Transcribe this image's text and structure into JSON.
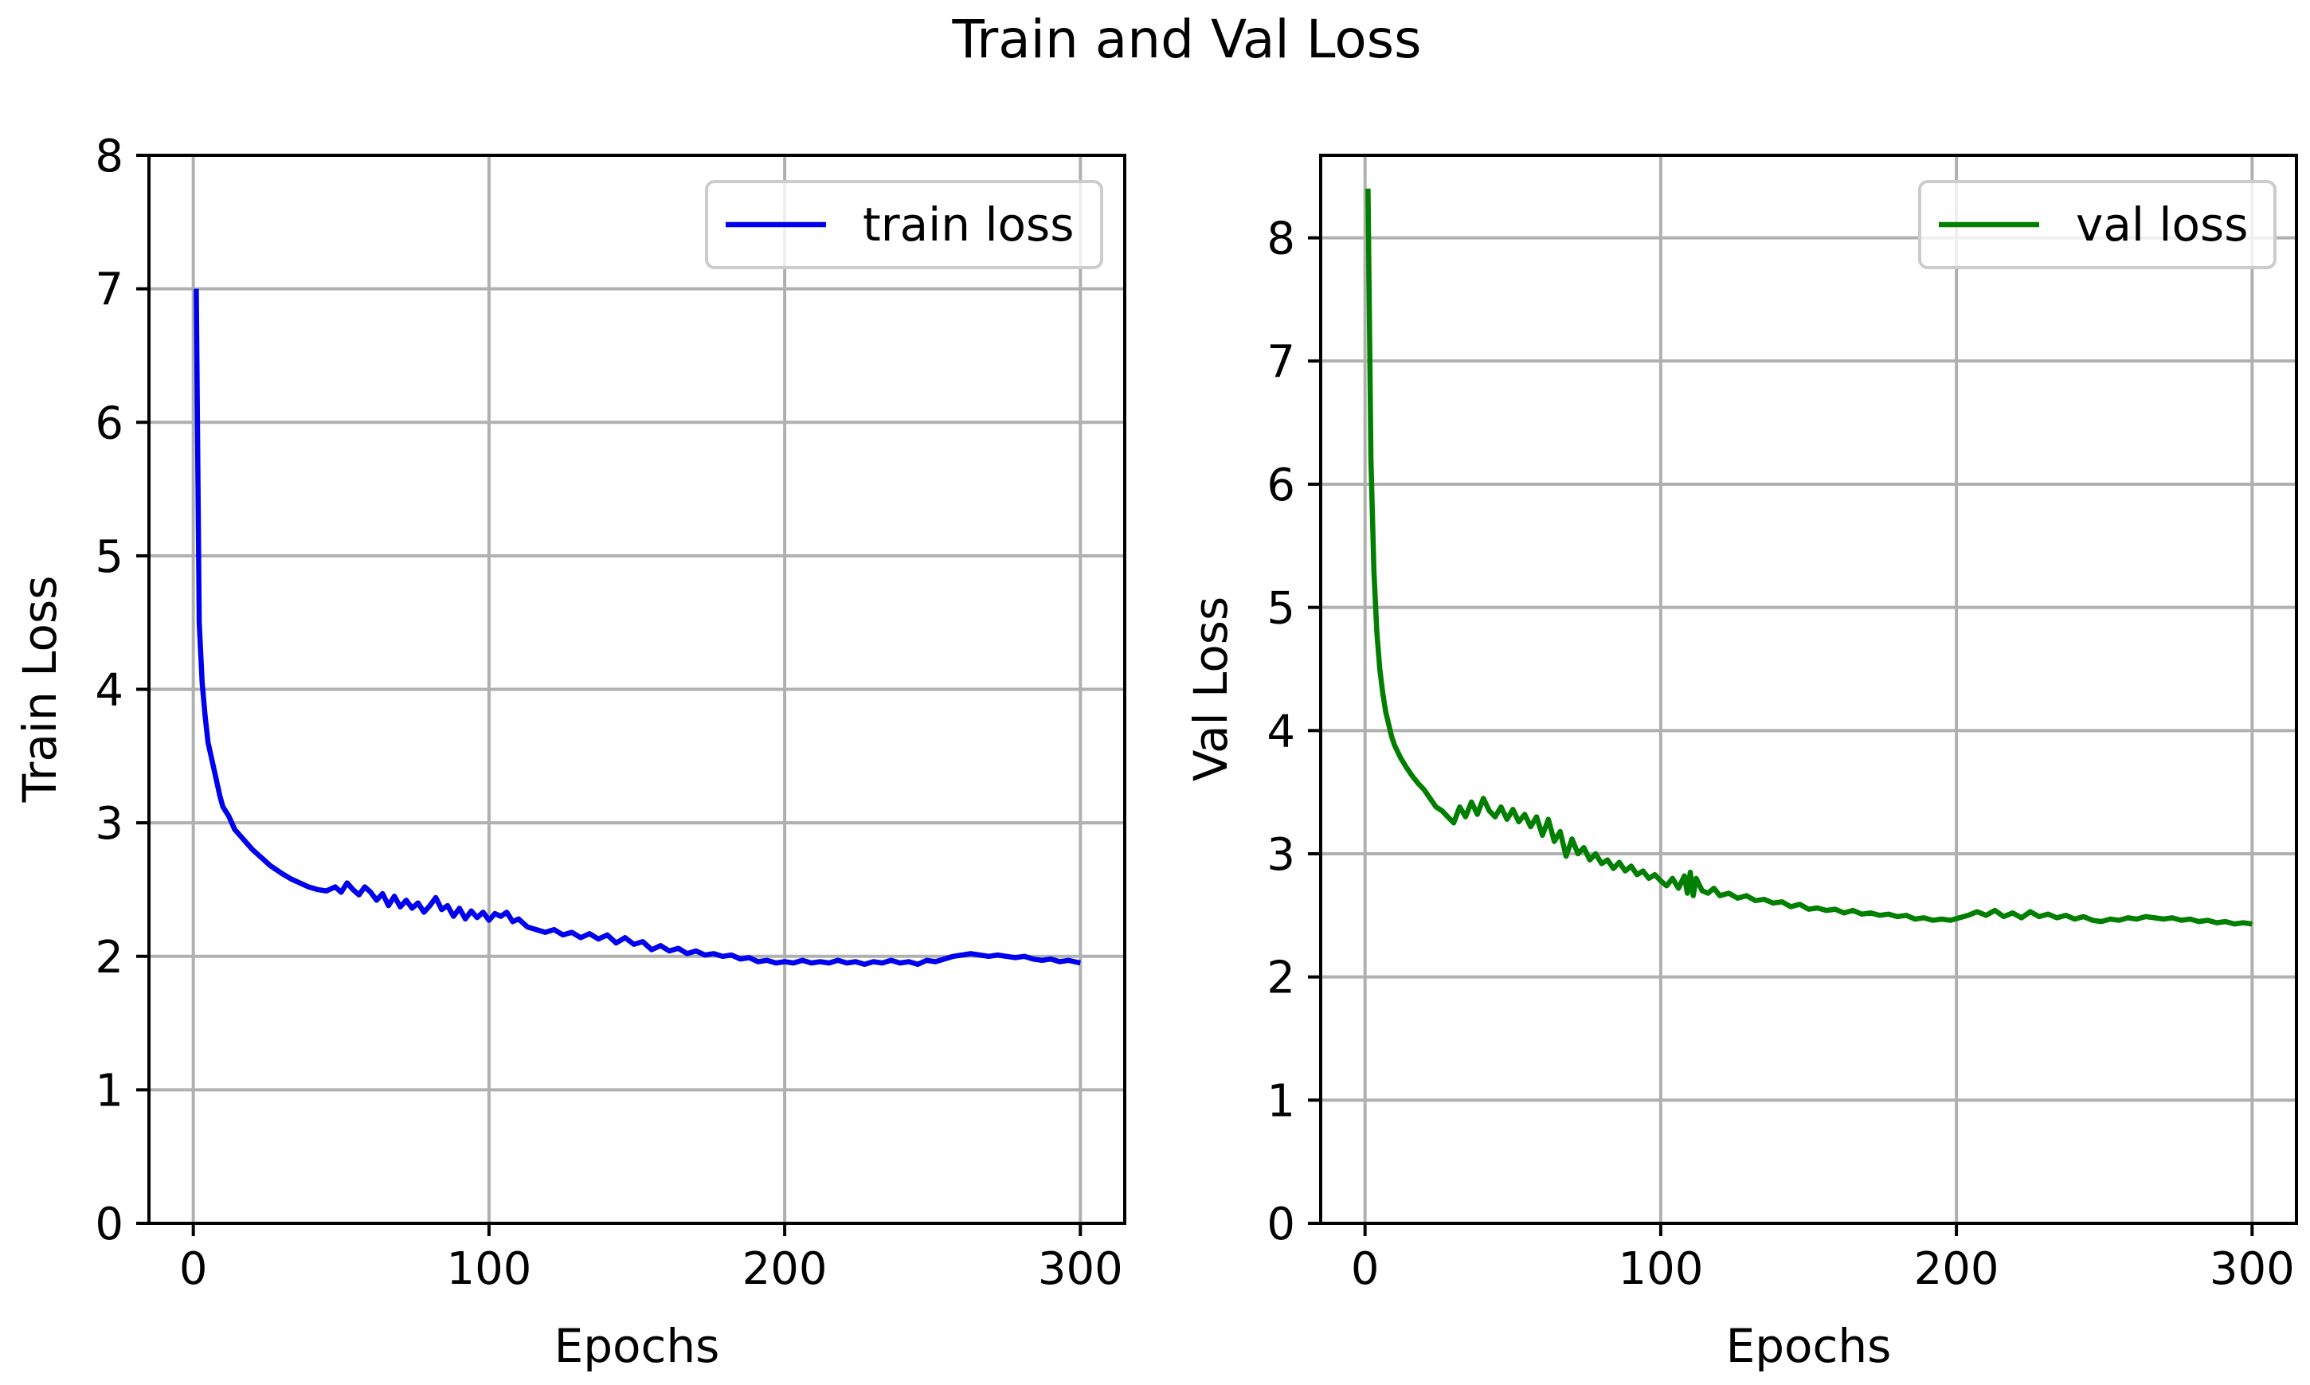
{
  "figure": {
    "title": "Train and Val Loss"
  },
  "chart_data": [
    {
      "type": "line",
      "title": "",
      "xlabel": "Epochs",
      "ylabel": "Train Loss",
      "xlim": [
        -15,
        315
      ],
      "ylim": [
        0,
        8
      ],
      "xticks": [
        0,
        100,
        200,
        300
      ],
      "yticks": [
        0,
        1,
        2,
        3,
        4,
        5,
        6,
        7,
        8
      ],
      "grid": true,
      "legend_position": "top-right",
      "series": [
        {
          "name": "train loss",
          "color": "#0000ee",
          "points": [
            [
              1,
              7.0
            ],
            [
              2,
              4.5
            ],
            [
              3,
              4.05
            ],
            [
              4,
              3.8
            ],
            [
              5,
              3.6
            ],
            [
              6,
              3.5
            ],
            [
              7,
              3.4
            ],
            [
              8,
              3.3
            ],
            [
              9,
              3.2
            ],
            [
              10,
              3.12
            ],
            [
              12,
              3.05
            ],
            [
              14,
              2.95
            ],
            [
              16,
              2.9
            ],
            [
              18,
              2.85
            ],
            [
              20,
              2.8
            ],
            [
              22,
              2.76
            ],
            [
              24,
              2.72
            ],
            [
              26,
              2.68
            ],
            [
              28,
              2.65
            ],
            [
              30,
              2.62
            ],
            [
              33,
              2.58
            ],
            [
              36,
              2.55
            ],
            [
              39,
              2.52
            ],
            [
              42,
              2.5
            ],
            [
              45,
              2.49
            ],
            [
              48,
              2.52
            ],
            [
              50,
              2.48
            ],
            [
              52,
              2.55
            ],
            [
              54,
              2.5
            ],
            [
              56,
              2.46
            ],
            [
              58,
              2.52
            ],
            [
              60,
              2.48
            ],
            [
              62,
              2.42
            ],
            [
              64,
              2.47
            ],
            [
              66,
              2.38
            ],
            [
              68,
              2.45
            ],
            [
              70,
              2.37
            ],
            [
              72,
              2.42
            ],
            [
              74,
              2.36
            ],
            [
              76,
              2.4
            ],
            [
              78,
              2.33
            ],
            [
              80,
              2.38
            ],
            [
              82,
              2.44
            ],
            [
              84,
              2.35
            ],
            [
              86,
              2.38
            ],
            [
              88,
              2.3
            ],
            [
              90,
              2.36
            ],
            [
              92,
              2.28
            ],
            [
              94,
              2.34
            ],
            [
              96,
              2.29
            ],
            [
              98,
              2.33
            ],
            [
              100,
              2.27
            ],
            [
              102,
              2.32
            ],
            [
              104,
              2.3
            ],
            [
              106,
              2.33
            ],
            [
              108,
              2.26
            ],
            [
              110,
              2.28
            ],
            [
              113,
              2.22
            ],
            [
              116,
              2.2
            ],
            [
              119,
              2.18
            ],
            [
              122,
              2.2
            ],
            [
              125,
              2.16
            ],
            [
              128,
              2.18
            ],
            [
              131,
              2.14
            ],
            [
              134,
              2.17
            ],
            [
              137,
              2.13
            ],
            [
              140,
              2.16
            ],
            [
              143,
              2.1
            ],
            [
              146,
              2.14
            ],
            [
              149,
              2.09
            ],
            [
              152,
              2.11
            ],
            [
              155,
              2.05
            ],
            [
              158,
              2.08
            ],
            [
              161,
              2.04
            ],
            [
              164,
              2.06
            ],
            [
              167,
              2.02
            ],
            [
              170,
              2.04
            ],
            [
              173,
              2.01
            ],
            [
              176,
              2.02
            ],
            [
              179,
              2.0
            ],
            [
              182,
              2.01
            ],
            [
              185,
              1.98
            ],
            [
              188,
              1.99
            ],
            [
              191,
              1.96
            ],
            [
              194,
              1.97
            ],
            [
              197,
              1.95
            ],
            [
              200,
              1.96
            ],
            [
              203,
              1.95
            ],
            [
              206,
              1.97
            ],
            [
              209,
              1.95
            ],
            [
              212,
              1.96
            ],
            [
              215,
              1.95
            ],
            [
              218,
              1.97
            ],
            [
              221,
              1.95
            ],
            [
              224,
              1.96
            ],
            [
              227,
              1.94
            ],
            [
              230,
              1.96
            ],
            [
              233,
              1.95
            ],
            [
              236,
              1.97
            ],
            [
              239,
              1.95
            ],
            [
              242,
              1.96
            ],
            [
              245,
              1.94
            ],
            [
              248,
              1.97
            ],
            [
              251,
              1.96
            ],
            [
              254,
              1.98
            ],
            [
              257,
              2.0
            ],
            [
              260,
              2.01
            ],
            [
              263,
              2.02
            ],
            [
              266,
              2.01
            ],
            [
              269,
              2.0
            ],
            [
              272,
              2.01
            ],
            [
              275,
              2.0
            ],
            [
              278,
              1.99
            ],
            [
              281,
              2.0
            ],
            [
              284,
              1.98
            ],
            [
              287,
              1.97
            ],
            [
              290,
              1.98
            ],
            [
              293,
              1.96
            ],
            [
              296,
              1.97
            ],
            [
              298,
              1.96
            ],
            [
              300,
              1.95
            ]
          ]
        }
      ]
    },
    {
      "type": "line",
      "title": "",
      "xlabel": "Epochs",
      "ylabel": "Val Loss",
      "xlim": [
        -15,
        315
      ],
      "ylim": [
        0,
        8.67
      ],
      "xticks": [
        0,
        100,
        200,
        300
      ],
      "yticks": [
        0,
        1,
        2,
        3,
        4,
        5,
        6,
        7,
        8
      ],
      "grid": true,
      "legend_position": "top-right",
      "series": [
        {
          "name": "val loss",
          "color": "#007f00",
          "points": [
            [
              1,
              8.4
            ],
            [
              2,
              6.2
            ],
            [
              3,
              5.3
            ],
            [
              4,
              4.8
            ],
            [
              5,
              4.5
            ],
            [
              6,
              4.3
            ],
            [
              7,
              4.15
            ],
            [
              8,
              4.05
            ],
            [
              9,
              3.95
            ],
            [
              10,
              3.88
            ],
            [
              12,
              3.78
            ],
            [
              14,
              3.7
            ],
            [
              16,
              3.63
            ],
            [
              18,
              3.57
            ],
            [
              20,
              3.52
            ],
            [
              22,
              3.45
            ],
            [
              24,
              3.38
            ],
            [
              26,
              3.35
            ],
            [
              28,
              3.3
            ],
            [
              30,
              3.25
            ],
            [
              32,
              3.38
            ],
            [
              34,
              3.3
            ],
            [
              36,
              3.42
            ],
            [
              38,
              3.32
            ],
            [
              40,
              3.45
            ],
            [
              42,
              3.35
            ],
            [
              44,
              3.3
            ],
            [
              46,
              3.38
            ],
            [
              48,
              3.28
            ],
            [
              50,
              3.36
            ],
            [
              52,
              3.26
            ],
            [
              54,
              3.32
            ],
            [
              56,
              3.22
            ],
            [
              58,
              3.3
            ],
            [
              60,
              3.15
            ],
            [
              62,
              3.28
            ],
            [
              64,
              3.1
            ],
            [
              66,
              3.18
            ],
            [
              68,
              2.98
            ],
            [
              70,
              3.12
            ],
            [
              72,
              3.0
            ],
            [
              74,
              3.05
            ],
            [
              76,
              2.95
            ],
            [
              78,
              3.0
            ],
            [
              80,
              2.92
            ],
            [
              82,
              2.95
            ],
            [
              84,
              2.88
            ],
            [
              86,
              2.93
            ],
            [
              88,
              2.86
            ],
            [
              90,
              2.9
            ],
            [
              92,
              2.83
            ],
            [
              94,
              2.86
            ],
            [
              96,
              2.8
            ],
            [
              98,
              2.83
            ],
            [
              100,
              2.78
            ],
            [
              102,
              2.74
            ],
            [
              104,
              2.8
            ],
            [
              106,
              2.72
            ],
            [
              108,
              2.82
            ],
            [
              109,
              2.68
            ],
            [
              110,
              2.85
            ],
            [
              111,
              2.66
            ],
            [
              112,
              2.8
            ],
            [
              114,
              2.7
            ],
            [
              116,
              2.68
            ],
            [
              118,
              2.72
            ],
            [
              120,
              2.66
            ],
            [
              123,
              2.68
            ],
            [
              126,
              2.64
            ],
            [
              129,
              2.66
            ],
            [
              132,
              2.62
            ],
            [
              135,
              2.63
            ],
            [
              138,
              2.6
            ],
            [
              141,
              2.61
            ],
            [
              144,
              2.57
            ],
            [
              147,
              2.59
            ],
            [
              150,
              2.55
            ],
            [
              153,
              2.56
            ],
            [
              156,
              2.54
            ],
            [
              159,
              2.55
            ],
            [
              162,
              2.52
            ],
            [
              165,
              2.54
            ],
            [
              168,
              2.51
            ],
            [
              171,
              2.52
            ],
            [
              174,
              2.5
            ],
            [
              177,
              2.51
            ],
            [
              180,
              2.49
            ],
            [
              183,
              2.5
            ],
            [
              186,
              2.47
            ],
            [
              189,
              2.48
            ],
            [
              192,
              2.46
            ],
            [
              195,
              2.47
            ],
            [
              198,
              2.46
            ],
            [
              201,
              2.48
            ],
            [
              204,
              2.5
            ],
            [
              207,
              2.53
            ],
            [
              210,
              2.5
            ],
            [
              213,
              2.54
            ],
            [
              216,
              2.49
            ],
            [
              219,
              2.52
            ],
            [
              222,
              2.48
            ],
            [
              225,
              2.53
            ],
            [
              228,
              2.49
            ],
            [
              231,
              2.51
            ],
            [
              234,
              2.48
            ],
            [
              237,
              2.5
            ],
            [
              240,
              2.47
            ],
            [
              243,
              2.49
            ],
            [
              246,
              2.46
            ],
            [
              249,
              2.45
            ],
            [
              252,
              2.47
            ],
            [
              255,
              2.46
            ],
            [
              258,
              2.48
            ],
            [
              261,
              2.47
            ],
            [
              264,
              2.49
            ],
            [
              267,
              2.48
            ],
            [
              270,
              2.47
            ],
            [
              273,
              2.48
            ],
            [
              276,
              2.46
            ],
            [
              279,
              2.47
            ],
            [
              282,
              2.45
            ],
            [
              285,
              2.46
            ],
            [
              288,
              2.44
            ],
            [
              291,
              2.45
            ],
            [
              294,
              2.43
            ],
            [
              297,
              2.44
            ],
            [
              300,
              2.43
            ]
          ]
        }
      ]
    }
  ]
}
